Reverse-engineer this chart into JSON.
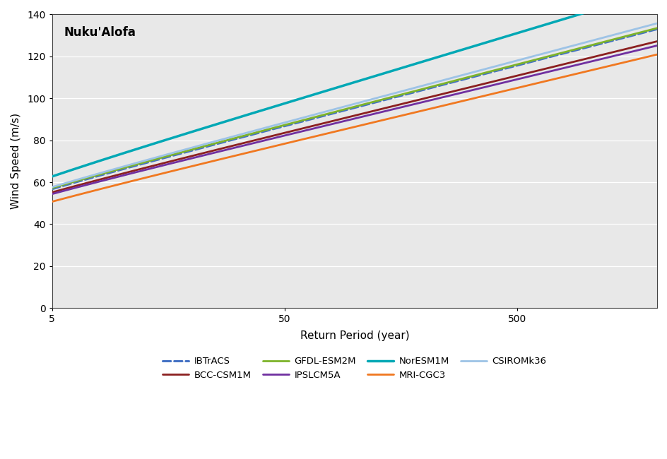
{
  "title": "Nuku'Alofa",
  "xlabel": "Return Period (year)",
  "ylabel": "Wind Speed (m/s)",
  "bg_color": "#e8e8e8",
  "ylim": [
    0,
    140
  ],
  "yticks": [
    0,
    20,
    40,
    60,
    80,
    100,
    120,
    140
  ],
  "xlog_min": 5,
  "xlog_max": 2000,
  "xticks": [
    5,
    50,
    500
  ],
  "series": [
    {
      "label": "IBTrACS",
      "color": "#4472C4",
      "linestyle": "--",
      "linewidth": 2.2,
      "u": 38.0,
      "alpha": 12.5
    },
    {
      "label": "BCC-CSM1M",
      "color": "#8B2020",
      "linestyle": "-",
      "linewidth": 2.0,
      "u": 37.5,
      "alpha": 11.8
    },
    {
      "label": "GFDL-ESM2M",
      "color": "#7DB32A",
      "linestyle": "-",
      "linewidth": 2.0,
      "u": 38.5,
      "alpha": 12.5
    },
    {
      "label": "IPSLCM5A",
      "color": "#7030A0",
      "linestyle": "-",
      "linewidth": 2.0,
      "u": 37.0,
      "alpha": 11.6
    },
    {
      "label": "NorESM1M",
      "color": "#00A8B5",
      "linestyle": "-",
      "linewidth": 2.5,
      "u": 41.0,
      "alpha": 14.5
    },
    {
      "label": "MRI-CGC3",
      "color": "#F07820",
      "linestyle": "-",
      "linewidth": 2.0,
      "u": 33.5,
      "alpha": 11.5
    },
    {
      "label": "CSIROMk36",
      "color": "#9DC3E6",
      "linestyle": "-",
      "linewidth": 2.0,
      "u": 38.5,
      "alpha": 12.8
    }
  ],
  "legend_order": [
    0,
    1,
    2,
    3,
    4,
    5,
    6
  ]
}
